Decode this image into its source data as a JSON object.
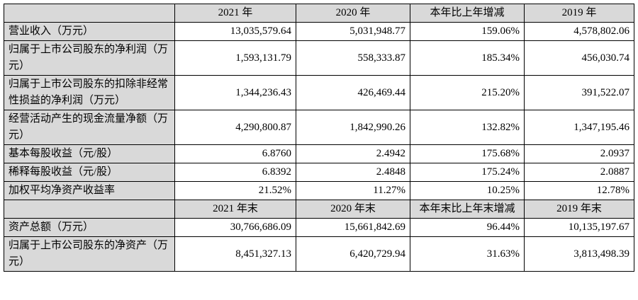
{
  "header1": [
    "",
    "2021 年",
    "2020 年",
    "本年比上年增减",
    "2019 年"
  ],
  "rows1": [
    {
      "label": "营业收入（万元）",
      "cells": [
        "13,035,579.64",
        "5,031,948.77",
        "159.06%",
        "4,578,802.06"
      ]
    },
    {
      "label": "归属于上市公司股东的净利润（万元）",
      "cells": [
        "1,593,131.79",
        "558,333.87",
        "185.34%",
        "456,030.74"
      ]
    },
    {
      "label": "归属于上市公司股东的扣除非经常性损益的净利润（万元）",
      "cells": [
        "1,344,236.43",
        "426,469.44",
        "215.20%",
        "391,522.07"
      ]
    },
    {
      "label": "经营活动产生的现金流量净额（万元）",
      "cells": [
        "4,290,800.87",
        "1,842,990.26",
        "132.82%",
        "1,347,195.46"
      ]
    },
    {
      "label": "基本每股收益（元/股）",
      "cells": [
        "6.8760",
        "2.4942",
        "175.68%",
        "2.0937"
      ]
    },
    {
      "label": "稀释每股收益（元/股）",
      "cells": [
        "6.8392",
        "2.4848",
        "175.24%",
        "2.0887"
      ]
    },
    {
      "label": "加权平均净资产收益率",
      "cells": [
        "21.52%",
        "11.27%",
        "10.25%",
        "12.78%"
      ]
    }
  ],
  "header2": [
    "",
    "2021 年末",
    "2020 年末",
    "本年末比上年末增减",
    "2019 年末"
  ],
  "rows2": [
    {
      "label": "资产总额（万元）",
      "cells": [
        "30,766,686.09",
        "15,661,842.69",
        "96.44%",
        "10,135,197.67"
      ]
    },
    {
      "label": "归属于上市公司股东的净资产（万元）",
      "cells": [
        "8,451,327.13",
        "6,420,729.94",
        "31.63%",
        "3,813,498.39"
      ]
    }
  ]
}
